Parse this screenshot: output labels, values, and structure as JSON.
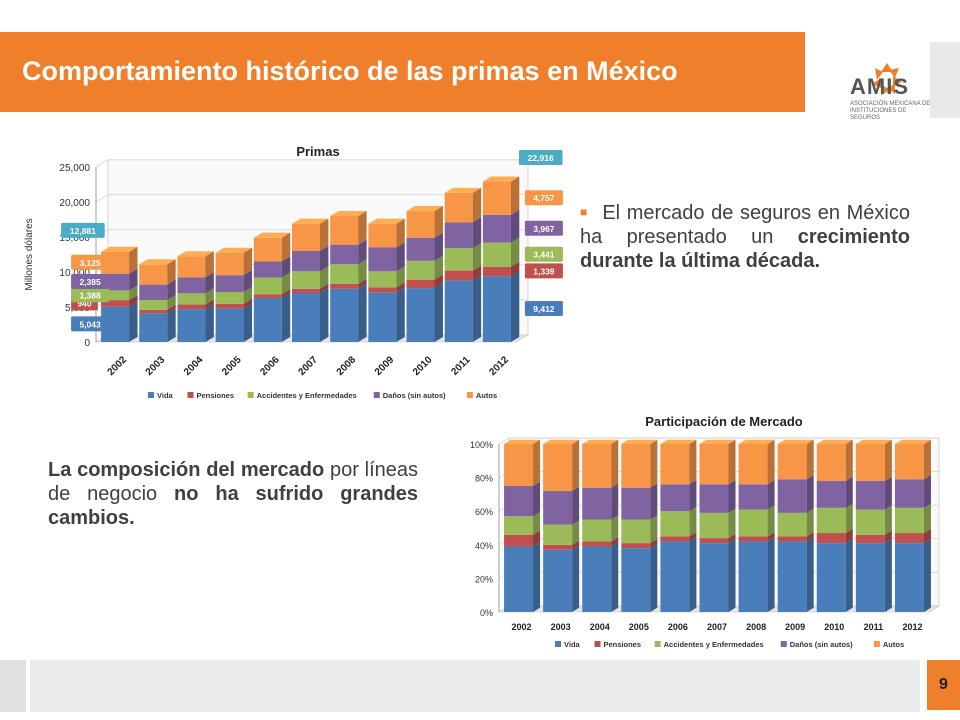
{
  "header": {
    "title": "Comportamiento histórico de las primas en México",
    "logo_name": "AMIS",
    "logo_sub": "ASOCIACIÓN MEXICANA DE INSTITUCIONES DE SEGUROS"
  },
  "bullet": {
    "part1": "El mercado de seguros en México ha presentado un ",
    "bold": "crecimiento durante la última década."
  },
  "composition": {
    "bold1": "La composición del mercado",
    "normal1": " por líneas de negocio ",
    "bold2": "no ha sufrido grandes cambios."
  },
  "footer": {
    "page_number": "9"
  },
  "colors": {
    "accent": "#f07f2b",
    "vida": "#4a7ebb",
    "pensiones": "#c0504d",
    "accidentes": "#9bbb59",
    "danos": "#8064a2",
    "autos": "#f79646"
  },
  "chart_data": [
    {
      "type": "bar",
      "stacked": true,
      "title": "Primas",
      "ylabel": "Millones dólares",
      "ylim": [
        0,
        25000
      ],
      "yticks": [
        "0",
        "5,000",
        "10,000",
        "15,000",
        "20,000",
        "25,000"
      ],
      "categories": [
        "2002",
        "2003",
        "2004",
        "2005",
        "2006",
        "2007",
        "2008",
        "2009",
        "2010",
        "2011",
        "2012"
      ],
      "series": [
        {
          "name": "Vida",
          "values": [
            5043,
            4100,
            4700,
            4800,
            6300,
            7000,
            7600,
            7100,
            7700,
            8800,
            9412
          ]
        },
        {
          "name": "Pensiones",
          "values": [
            940,
            500,
            650,
            650,
            500,
            600,
            700,
            700,
            1200,
            1400,
            1339
          ]
        },
        {
          "name": "Accidentes y Enfermedades",
          "values": [
            1388,
            1400,
            1600,
            1700,
            2400,
            2500,
            2800,
            2300,
            2700,
            3200,
            3441
          ]
        },
        {
          "name": "Daños (sin autos)",
          "values": [
            2385,
            2200,
            2300,
            2400,
            2300,
            2900,
            2800,
            3400,
            3300,
            3700,
            3967
          ]
        },
        {
          "name": "Autos",
          "values": [
            3125,
            2900,
            3000,
            3200,
            3400,
            3900,
            4100,
            3400,
            3800,
            4200,
            4757
          ]
        }
      ],
      "data_labels_2002": [
        "5,043",
        "940",
        "1,388",
        "2,385",
        "3,125"
      ],
      "total_2002": "12,881",
      "data_labels_2012": [
        "9,412",
        "1,339",
        "3,441",
        "3,967",
        "4,757"
      ],
      "total_2012": "22,916",
      "legend_position": "bottom"
    },
    {
      "type": "bar",
      "stacked": true,
      "percent": true,
      "title": "Participación de Mercado",
      "ylim": [
        0,
        100
      ],
      "yticks": [
        "0%",
        "20%",
        "40%",
        "60%",
        "80%",
        "100%"
      ],
      "categories": [
        "2002",
        "2003",
        "2004",
        "2005",
        "2006",
        "2007",
        "2008",
        "2009",
        "2010",
        "2011",
        "2012"
      ],
      "series": [
        {
          "name": "Vida",
          "values": [
            39,
            37,
            39,
            38,
            42,
            41,
            42,
            42,
            41,
            41,
            41
          ]
        },
        {
          "name": "Pensiones",
          "values": [
            7,
            3,
            3,
            3,
            3,
            3,
            3,
            3,
            6,
            5,
            6
          ]
        },
        {
          "name": "Accidentes y Enfermedades",
          "values": [
            11,
            12,
            13,
            14,
            15,
            15,
            16,
            14,
            15,
            15,
            15
          ]
        },
        {
          "name": "Daños (sin autos)",
          "values": [
            18,
            20,
            19,
            19,
            16,
            17,
            15,
            20,
            16,
            17,
            17
          ]
        },
        {
          "name": "Autos",
          "values": [
            25,
            28,
            26,
            26,
            24,
            24,
            24,
            21,
            22,
            22,
            21
          ]
        }
      ],
      "legend_position": "bottom"
    }
  ]
}
